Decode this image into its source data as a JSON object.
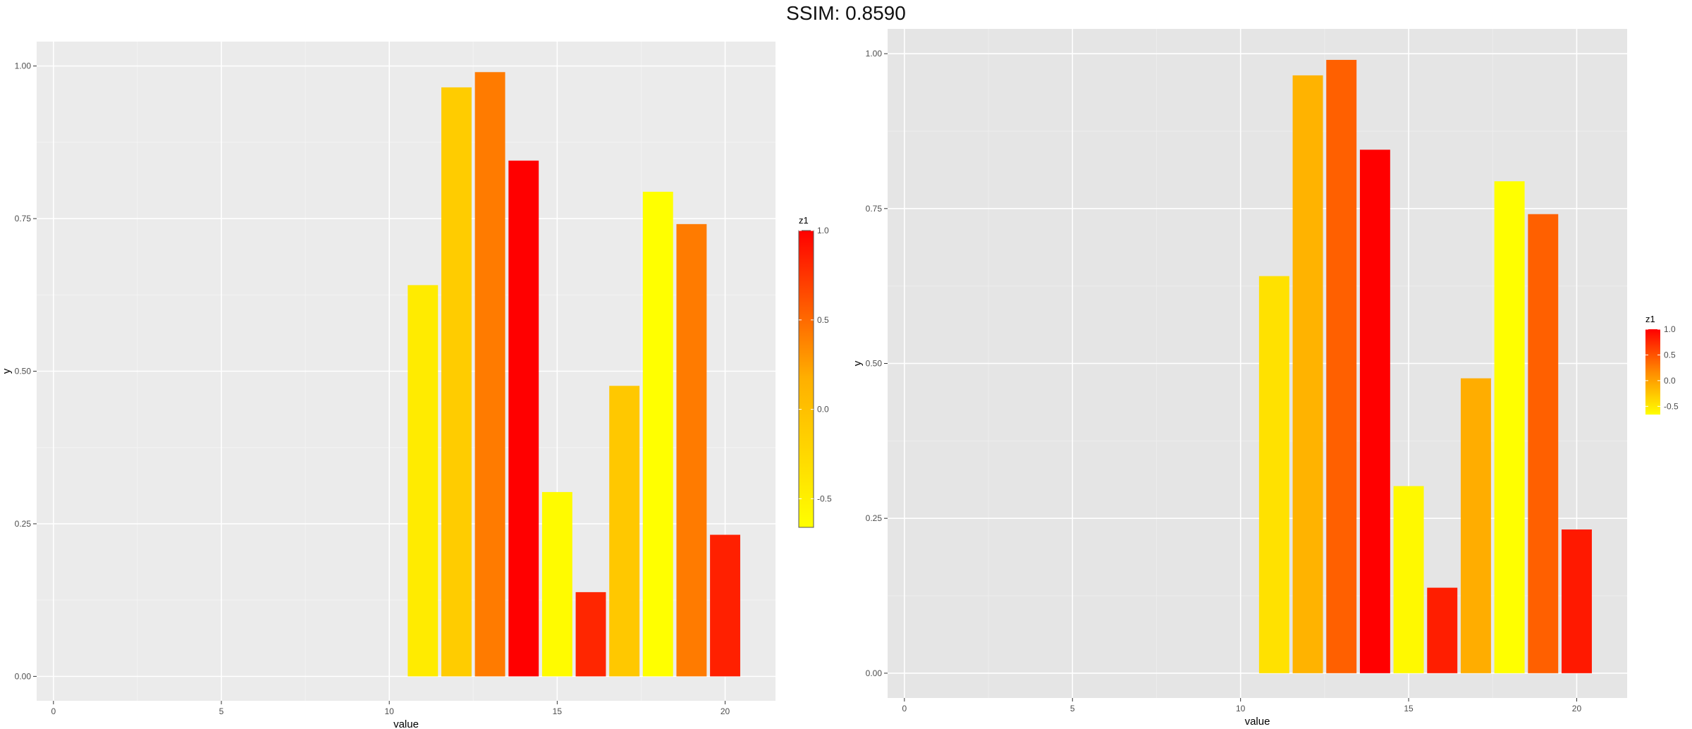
{
  "header": {
    "title": "SSIM: 0.8590"
  },
  "chart_data": [
    {
      "type": "bar",
      "xlabel": "value",
      "ylabel": "y",
      "xlim": [
        -0.5,
        21.5
      ],
      "ylim": [
        -0.04,
        1.04
      ],
      "x_ticks": [
        0,
        5,
        10,
        15,
        20
      ],
      "y_ticks": [
        0.0,
        0.25,
        0.5,
        0.75,
        1.0
      ],
      "x_tick_labels": [
        "0",
        "5",
        "10",
        "15",
        "20"
      ],
      "y_tick_labels": [
        "0.00",
        "0.25",
        "0.50",
        "0.75",
        "1.00"
      ],
      "grid": true,
      "panel_background": "#ebebeb",
      "legend": {
        "title": "z1",
        "position": "right",
        "ticks": [
          1.0,
          0.5,
          0.0,
          -0.5
        ],
        "tick_labels": [
          "1.0",
          "0.5",
          "0.0",
          "-0.5"
        ],
        "range": [
          -0.66,
          1.0
        ],
        "colors": [
          "#ffff00",
          "#ff0000"
        ]
      },
      "x": [
        11,
        12,
        13,
        14,
        15,
        16,
        17,
        18,
        19,
        20
      ],
      "values": [
        0.641,
        0.965,
        0.99,
        0.845,
        0.302,
        0.138,
        0.476,
        0.794,
        0.741,
        0.232
      ],
      "z1": [
        -0.45,
        -0.12,
        0.42,
        1.0,
        -0.62,
        0.82,
        -0.08,
        -0.66,
        0.42,
        0.85
      ]
    },
    {
      "type": "bar",
      "xlabel": "value",
      "ylabel": "y",
      "xlim": [
        -0.5,
        21.5
      ],
      "ylim": [
        -0.04,
        1.04
      ],
      "x_ticks": [
        0,
        5,
        10,
        15,
        20
      ],
      "y_ticks": [
        0.0,
        0.25,
        0.5,
        0.75,
        1.0
      ],
      "x_tick_labels": [
        "0",
        "5",
        "10",
        "15",
        "20"
      ],
      "y_tick_labels": [
        "0.00",
        "0.25",
        "0.50",
        "0.75",
        "1.00"
      ],
      "grid": true,
      "panel_background": "#e5e5e5",
      "legend": {
        "title": "z1",
        "position": "right",
        "ticks": [
          1.0,
          0.5,
          0.0,
          -0.5
        ],
        "tick_labels": [
          "1.0",
          "0.5",
          "0.0",
          "-0.5"
        ],
        "range": [
          -0.66,
          1.0
        ],
        "colors": [
          "#ffff00",
          "#ff0000"
        ]
      },
      "x": [
        11,
        12,
        13,
        14,
        15,
        16,
        17,
        18,
        19,
        20
      ],
      "values": [
        0.641,
        0.965,
        0.99,
        0.845,
        0.302,
        0.138,
        0.476,
        0.794,
        0.741,
        0.232
      ],
      "z1": [
        -0.45,
        -0.12,
        0.42,
        1.0,
        -0.62,
        0.82,
        -0.08,
        -0.66,
        0.42,
        0.85
      ]
    }
  ]
}
